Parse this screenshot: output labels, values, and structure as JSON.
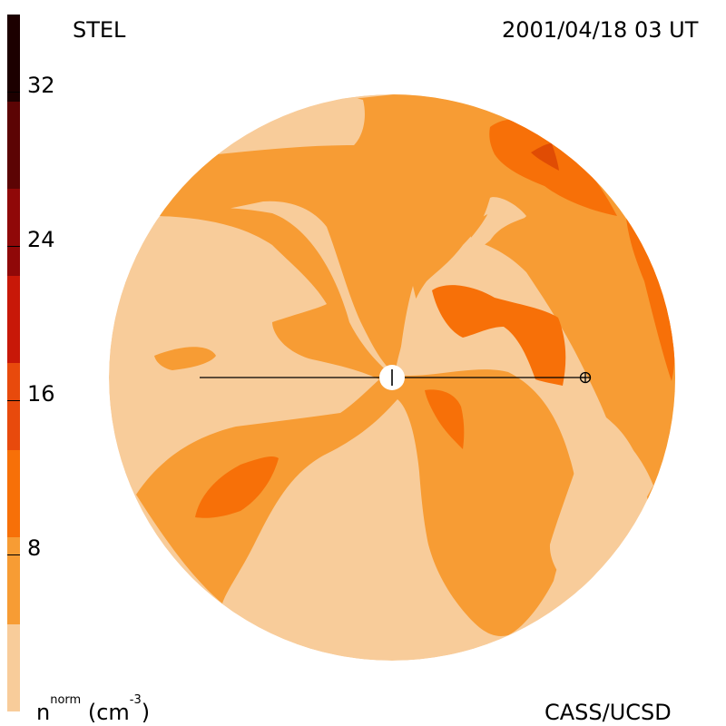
{
  "header": {
    "source_label": "STEL",
    "timestamp": "2001/04/18 03 UT"
  },
  "footer": {
    "unit_label_base": "n",
    "unit_label_sup": "norm",
    "unit_label_tail": " (cm",
    "unit_exp": "-3",
    "unit_close": ")",
    "credit": "CASS/UCSD"
  },
  "colorbar": {
    "range": [
      0,
      36
    ],
    "ticks": [
      "8",
      "16",
      "24",
      "32"
    ],
    "levels": [
      "#f8cc9a",
      "#f79c34",
      "#f77008",
      "#e84a0c",
      "#c81808",
      "#900808",
      "#5c0404",
      "#1c0000"
    ]
  },
  "map": {
    "colors": {
      "light": "#f8cc9a",
      "mid": "#f79c34",
      "high": "#f77008",
      "peak": "#e04c04",
      "line": "#000000",
      "sun": "#ffffff"
    }
  }
}
